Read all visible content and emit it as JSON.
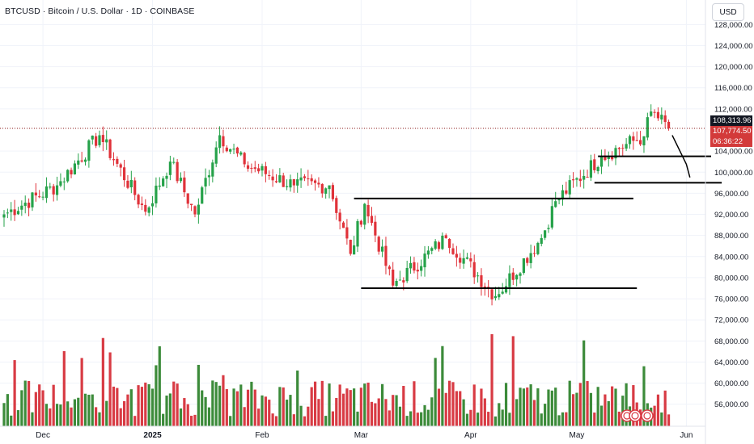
{
  "header": {
    "title": "BTCUSD · Bitcoin / U.S. Dollar · 1D · COINBASE",
    "currency_button": "USD"
  },
  "price_axis": {
    "ticks": [
      "128,000.00",
      "124,000.00",
      "120,000.00",
      "116,000.00",
      "112,000.00",
      "104,000.00",
      "100,000.00",
      "96,000.00",
      "92,000.00",
      "88,000.00",
      "84,000.00",
      "80,000.00",
      "76,000.00",
      "72,000.00",
      "68,000.00",
      "64,000.00",
      "60,000.00",
      "56,000.00"
    ],
    "last_price_label": "108,313.96",
    "current_price_label": "107,774.50",
    "countdown_label": "06:36:22"
  },
  "time_axis": {
    "ticks": [
      "Dec",
      "2025",
      "Feb",
      "Mar",
      "Apr",
      "May",
      "Jun"
    ]
  },
  "colors": {
    "up": "#26a24a",
    "down": "#e0323a",
    "volume_up": "#3c8b3a",
    "volume_down": "#d83b44",
    "grid": "#f0f3fa",
    "line": "#000000",
    "last_price_line": "#8a1a1a"
  },
  "chart_data": {
    "type": "candlestick",
    "interval": "1D",
    "ylim": [
      54000,
      129000
    ],
    "last_price": 108313.96,
    "current_price": 107774.5,
    "ohlc_anchors": [
      {
        "date": "2024-11-20",
        "close": 92000
      },
      {
        "date": "2024-12-05",
        "close": 97500
      },
      {
        "date": "2024-12-17",
        "close": 107000
      },
      {
        "date": "2024-12-30",
        "close": 92500
      },
      {
        "date": "2025-01-06",
        "close": 102000
      },
      {
        "date": "2025-01-13",
        "close": 92000
      },
      {
        "date": "2025-01-20",
        "close": 107000
      },
      {
        "date": "2025-01-27",
        "close": 101500
      },
      {
        "date": "2025-02-10",
        "close": 97500
      },
      {
        "date": "2025-02-20",
        "close": 97500
      },
      {
        "date": "2025-02-26",
        "close": 84500
      },
      {
        "date": "2025-03-02",
        "close": 94000
      },
      {
        "date": "2025-03-10",
        "close": 78500
      },
      {
        "date": "2025-03-25",
        "close": 87500
      },
      {
        "date": "2025-04-08",
        "close": 76500
      },
      {
        "date": "2025-04-21",
        "close": 87500
      },
      {
        "date": "2025-04-25",
        "close": 94500
      },
      {
        "date": "2025-05-08",
        "close": 103000
      },
      {
        "date": "2025-05-20",
        "close": 106800
      },
      {
        "date": "2025-05-22",
        "close": 111500
      },
      {
        "date": "2025-05-27",
        "close": 108313.96
      }
    ],
    "annotations": [
      {
        "type": "horizontal_line",
        "price": 95000,
        "from": "2025-02-27",
        "to": "2025-05-17"
      },
      {
        "type": "horizontal_line",
        "price": 78000,
        "from": "2025-03-01",
        "to": "2025-05-18"
      },
      {
        "type": "horizontal_line",
        "price": 103000,
        "from": "2025-05-07",
        "to": "2025-06-08"
      },
      {
        "type": "horizontal_line",
        "price": 98000,
        "from": "2025-05-06",
        "to": "2025-06-11"
      },
      {
        "type": "polyline",
        "points": [
          [
            "2025-05-28",
            107000
          ],
          [
            "2025-06-01",
            101500
          ],
          [
            "2025-06-02",
            99000
          ]
        ]
      }
    ]
  }
}
